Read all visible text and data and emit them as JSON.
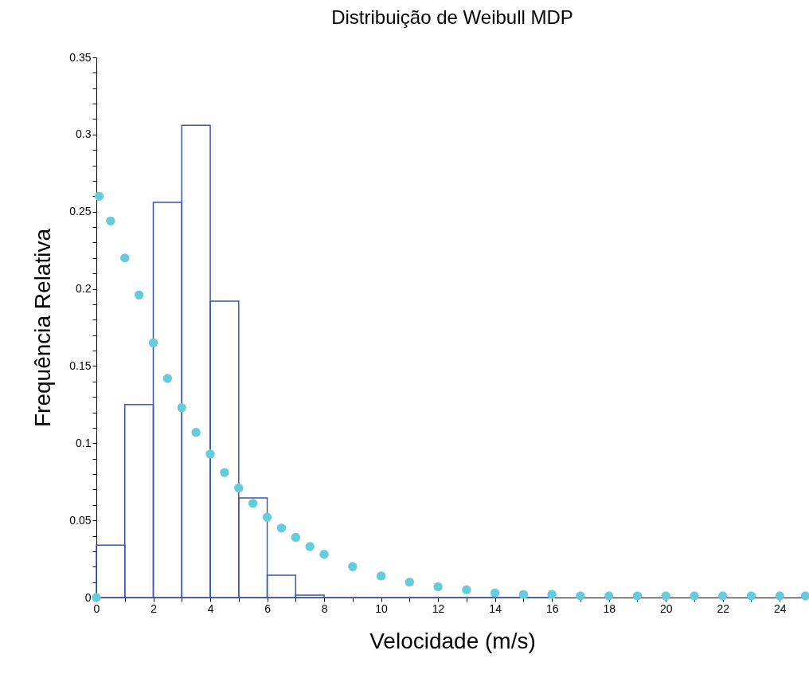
{
  "chart_data": {
    "type": "histogram",
    "title": "Distribuição de Weibull MDP",
    "xlabel": "Velocidade (m/s)",
    "ylabel": "Frequência Relativa",
    "bins": [
      0,
      1,
      2,
      3,
      4,
      5,
      6,
      7,
      8,
      9,
      10,
      11,
      12,
      13,
      14,
      15,
      16
    ],
    "values": [
      0.034,
      0.125,
      0.256,
      0.306,
      0.192,
      0.0645,
      0.0145,
      0.0015,
      0,
      0,
      0,
      0,
      0,
      0,
      0,
      0
    ],
    "color": "#3a56b0",
    "series": [
      {
        "type": "scatter",
        "color": "#66ccdd",
        "marker": "circle",
        "x": [
          0,
          0.1,
          0.5,
          1,
          1.5,
          2,
          2.5,
          3,
          3.5,
          4,
          4.5,
          5,
          5.5,
          6,
          6.5,
          7,
          7.5,
          8,
          9,
          10,
          11,
          12,
          13,
          14,
          15,
          16,
          17,
          18,
          19,
          20,
          21,
          22,
          23,
          24,
          24.9
        ],
        "values": [
          0,
          0.26,
          0.244,
          0.22,
          0.196,
          0.165,
          0.142,
          0.123,
          0.107,
          0.093,
          0.081,
          0.071,
          0.061,
          0.052,
          0.045,
          0.039,
          0.033,
          0.028,
          0.02,
          0.014,
          0.01,
          0.007,
          0.005,
          0.003,
          0.002,
          0.002,
          0.001,
          0.001,
          0.001,
          0.001,
          0.001,
          0.001,
          0.001,
          0.001,
          0.001
        ]
      }
    ],
    "xlim": [
      0,
      25
    ],
    "xticks": [
      0,
      {
        "value": 1,
        "label": null
      },
      2,
      {
        "value": 3,
        "label": null
      },
      4,
      {
        "value": 5,
        "label": null
      },
      6,
      {
        "value": 7,
        "label": null
      },
      8,
      {
        "value": 9,
        "label": null
      },
      10,
      {
        "value": 11,
        "label": null
      },
      12,
      {
        "value": 13,
        "label": null
      },
      14,
      {
        "value": 15,
        "label": null
      },
      16,
      {
        "value": 17,
        "label": null
      },
      18,
      {
        "value": 19,
        "label": null
      },
      20,
      {
        "value": 21,
        "label": null
      },
      22,
      {
        "value": 23,
        "label": null
      },
      24
    ],
    "ylim": [
      0,
      0.35
    ],
    "yticks": [
      0,
      {
        "value": 0.01,
        "label": null
      },
      {
        "value": 0.02,
        "label": null
      },
      {
        "value": 0.03,
        "label": null
      },
      {
        "value": 0.04,
        "label": null
      },
      0.05,
      {
        "value": 0.06,
        "label": null
      },
      {
        "value": 0.07,
        "label": null
      },
      {
        "value": 0.08,
        "label": null
      },
      {
        "value": 0.09,
        "label": null
      },
      0.1,
      {
        "value": 0.11,
        "label": null
      },
      {
        "value": 0.12,
        "label": null
      },
      {
        "value": 0.13,
        "label": null
      },
      {
        "value": 0.14,
        "label": null
      },
      0.15,
      {
        "value": 0.16,
        "label": null
      },
      {
        "value": 0.17,
        "label": null
      },
      {
        "value": 0.18,
        "label": null
      },
      {
        "value": 0.19,
        "label": null
      },
      0.2,
      {
        "value": 0.21,
        "label": null
      },
      {
        "value": 0.22,
        "label": null
      },
      {
        "value": 0.23,
        "label": null
      },
      {
        "value": 0.24,
        "label": null
      },
      0.25,
      {
        "value": 0.26,
        "label": null
      },
      {
        "value": 0.27,
        "label": null
      },
      {
        "value": 0.28,
        "label": null
      },
      {
        "value": 0.29,
        "label": null
      },
      0.3,
      {
        "value": 0.31,
        "label": null
      },
      {
        "value": 0.32,
        "label": null
      },
      {
        "value": 0.33,
        "label": null
      },
      {
        "value": 0.34,
        "label": null
      },
      0.35
    ],
    "grid": false
  }
}
